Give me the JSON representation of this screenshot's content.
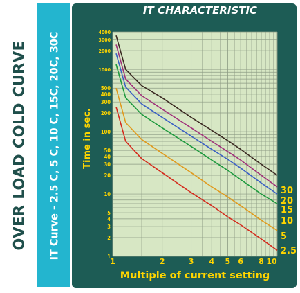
{
  "side_title": "OVER LOAD COLD CURVE",
  "side_band_text": "IT Curve - 2.5 C, 5 C, 10 C, 15C, 20C, 30C",
  "colors": {
    "panel": "#1d5c55",
    "plot_bg": "#d7e7c4",
    "grid": "#8d9b84",
    "axis_text": "#ffd500",
    "band": "#23b5cf",
    "title_text": "#ffffff"
  },
  "chart_data": {
    "type": "line",
    "title": "IT CHARACTERISTIC",
    "xlabel": "Multiple of current setting",
    "ylabel": "Time in sec.",
    "x_scale": "log",
    "y_scale": "log",
    "xlim": [
      1,
      10
    ],
    "ylim": [
      1,
      4000
    ],
    "x_ticks": [
      1,
      2,
      3,
      4,
      5,
      6,
      8,
      10
    ],
    "x_tick_labels": [
      "1",
      "2",
      "3",
      "4",
      "5",
      "6",
      "8",
      "10"
    ],
    "y_ticks": [
      1,
      2,
      3,
      4,
      5,
      10,
      20,
      30,
      40,
      50,
      100,
      200,
      300,
      400,
      500,
      1000,
      2000,
      3000,
      4000
    ],
    "y_tick_labels": [
      "1",
      "2",
      "3",
      "4",
      "5",
      "10",
      "20",
      "30",
      "40",
      "50",
      "100",
      "200",
      "300",
      "400",
      "500",
      "1000",
      "2000",
      "3000",
      "4000"
    ],
    "grid": true,
    "x": [
      1.05,
      1.2,
      1.5,
      2,
      3,
      4,
      5,
      6,
      8,
      10
    ],
    "series": [
      {
        "name": "30",
        "color": "#3b2a22",
        "values": [
          3500,
          1000,
          550,
          350,
          170,
          105,
          72,
          52,
          30,
          20
        ]
      },
      {
        "name": "20",
        "color": "#a0327a",
        "values": [
          2500,
          700,
          380,
          230,
          115,
          70,
          48,
          35,
          20,
          13
        ]
      },
      {
        "name": "15",
        "color": "#3a5fc4",
        "values": [
          1800,
          520,
          280,
          170,
          85,
          52,
          36,
          26,
          15,
          10
        ]
      },
      {
        "name": "10",
        "color": "#1e9a3e",
        "values": [
          1200,
          350,
          190,
          115,
          58,
          35,
          24,
          17,
          10,
          7
        ]
      },
      {
        "name": "5",
        "color": "#e09a1e",
        "values": [
          500,
          140,
          75,
          45,
          22,
          13,
          9,
          6.5,
          3.8,
          2.6
        ]
      },
      {
        "name": "2.5",
        "color": "#d42a1c",
        "values": [
          250,
          70,
          37,
          22,
          10.5,
          6.5,
          4.3,
          3.2,
          1.9,
          1.25
        ]
      }
    ],
    "legend_position": "right"
  }
}
